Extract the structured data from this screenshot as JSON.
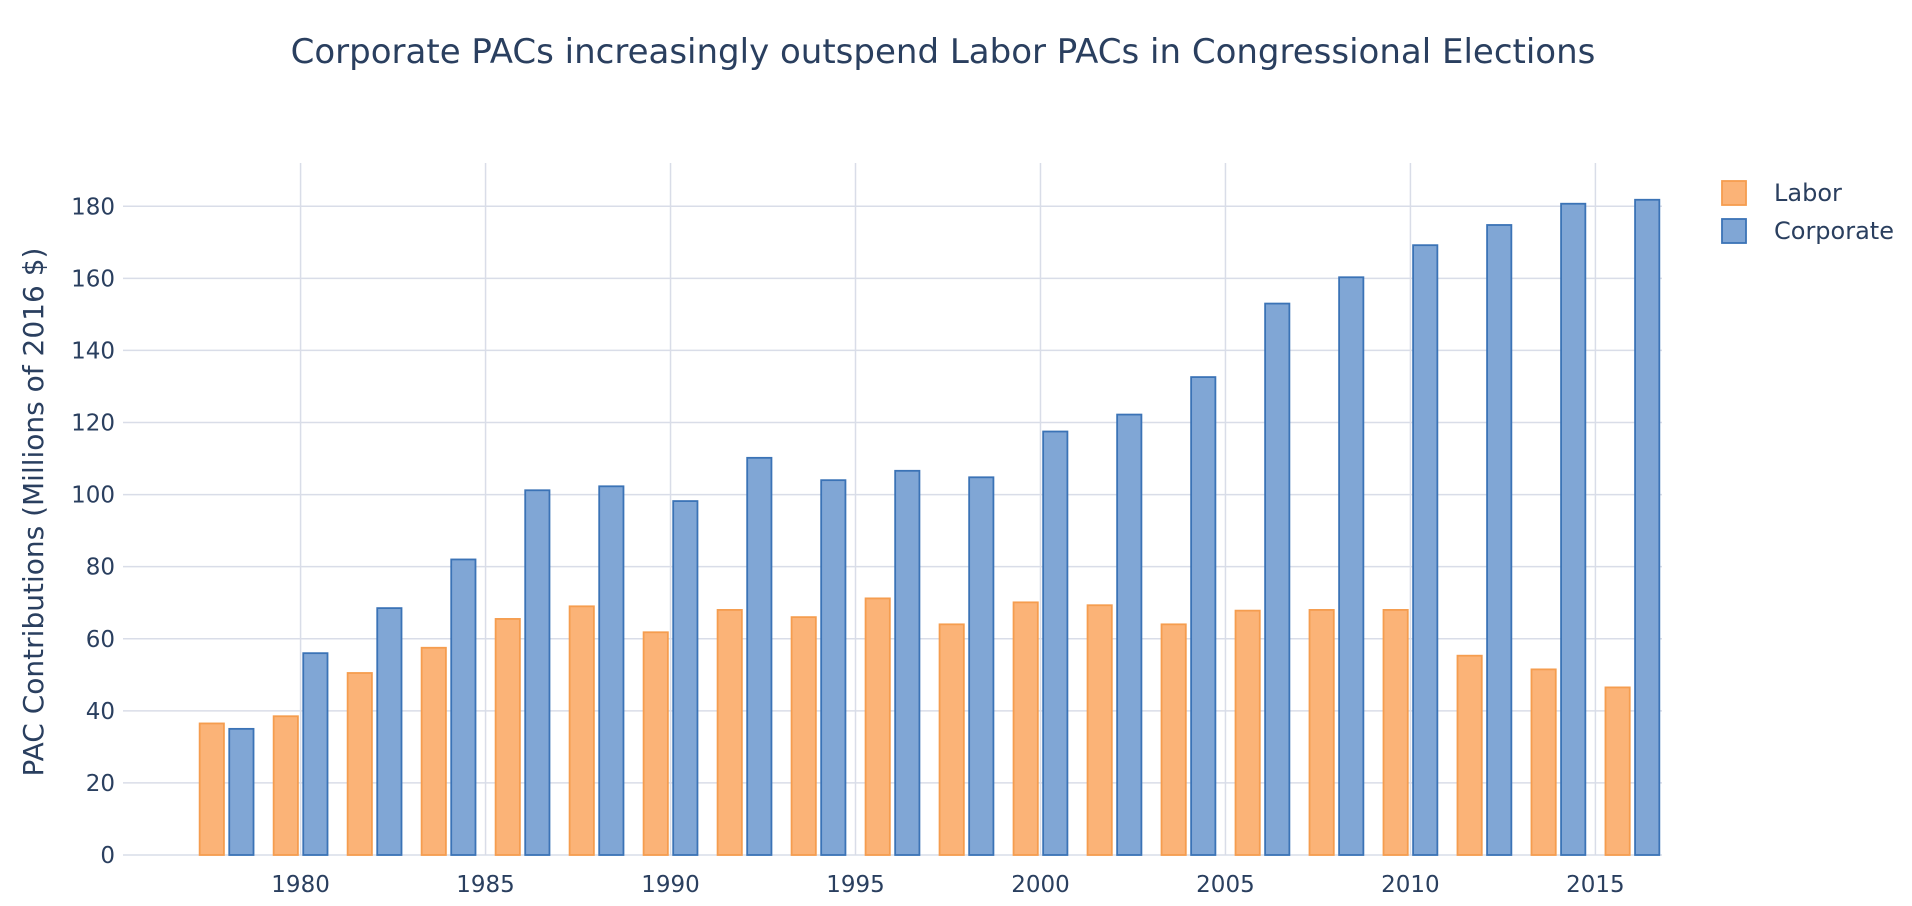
{
  "chart_data": {
    "type": "bar",
    "title": "Corporate PACs increasingly outspend Labor PACs in Congressional Elections",
    "xlabel": "",
    "ylabel": "PAC Contributions (Millions of 2016 $)",
    "x": [
      1978,
      1980,
      1982,
      1984,
      1986,
      1988,
      1990,
      1992,
      1994,
      1996,
      1998,
      2000,
      2002,
      2004,
      2006,
      2008,
      2010,
      2012,
      2014,
      2016
    ],
    "x_ticks": [
      1980,
      1985,
      1990,
      1995,
      2000,
      2005,
      2010,
      2015
    ],
    "xlim": [
      1975.2,
      2016.8
    ],
    "ylim": [
      0,
      192
    ],
    "y_ticks": [
      0,
      20,
      40,
      60,
      80,
      100,
      120,
      140,
      160,
      180
    ],
    "grid": true,
    "legend_position": "top-right",
    "series": [
      {
        "name": "Labor",
        "color": "#fbb377",
        "border": "#f59d4f",
        "values": [
          36.5,
          38.5,
          50.5,
          57.5,
          65.5,
          69,
          61.8,
          68,
          66,
          71.2,
          64,
          70.1,
          69.3,
          64,
          67.8,
          68,
          68,
          55.3,
          51.5,
          46.5
        ]
      },
      {
        "name": "Corporate",
        "color": "#80a6d5",
        "border": "#3b73b6",
        "values": [
          35,
          56,
          68.5,
          82,
          101.2,
          102.3,
          98.2,
          110.2,
          104,
          106.6,
          104.8,
          117.5,
          122.2,
          132.6,
          153,
          160.3,
          169.2,
          174.8,
          180.7,
          181.8
        ]
      }
    ]
  }
}
